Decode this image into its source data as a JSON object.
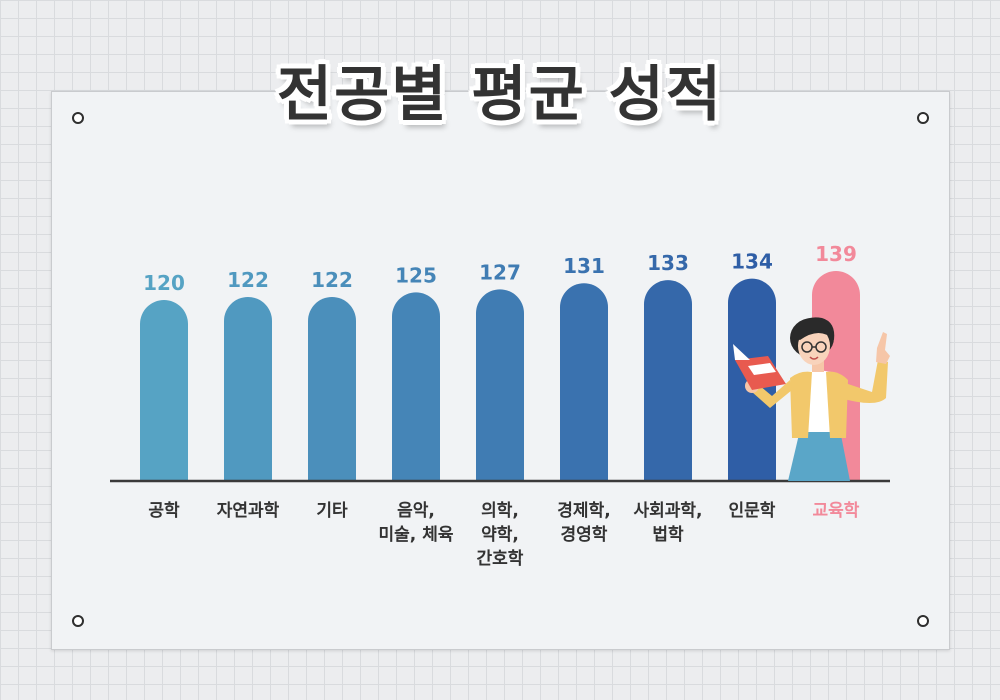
{
  "title": "전공별 평균 성적",
  "colors": {
    "bar_gradient": [
      "#56a3c4",
      "#2f5ea6"
    ],
    "highlight": "#f2899a",
    "axis": "#3a3a3a",
    "label": "#333333"
  },
  "chart_data": {
    "type": "bar",
    "title": "전공별 평균 성적",
    "xlabel": "",
    "ylabel": "",
    "ylim": [
      0,
      139
    ],
    "grid": false,
    "categories": [
      [
        "공학"
      ],
      [
        "자연과학"
      ],
      [
        "기타"
      ],
      [
        "음악,",
        "미술, 체육"
      ],
      [
        "의학,",
        "약학,",
        "간호학"
      ],
      [
        "경제학,",
        "경영학"
      ],
      [
        "사회과학,",
        "법학"
      ],
      [
        "인문학"
      ],
      [
        "교육학"
      ]
    ],
    "values": [
      120,
      122,
      122,
      125,
      127,
      131,
      133,
      134,
      139
    ],
    "highlighted_index": 8
  },
  "illustration": {
    "subject": "teacher-woman-holding-book-pointing-up",
    "colors": [
      "#f2c86b",
      "#5aa6c8",
      "#e85a4f"
    ]
  }
}
